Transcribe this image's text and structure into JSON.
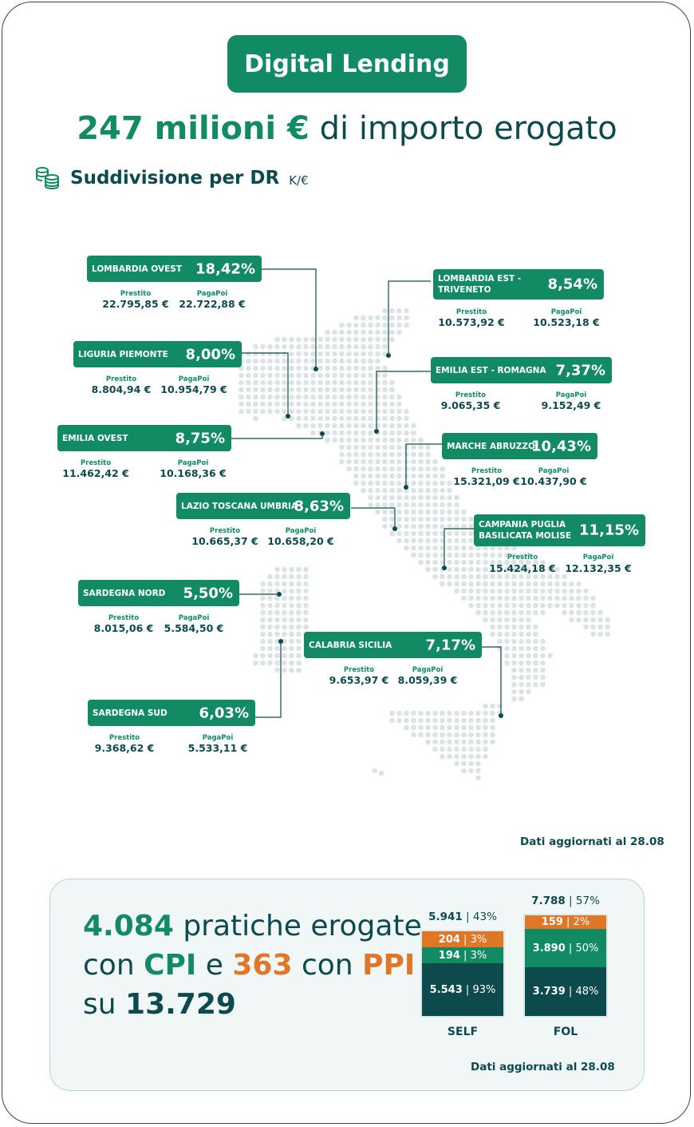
{
  "title": "Digital Lending",
  "headline": {
    "amount": "247 milioni €",
    "rest": "di importo erogato"
  },
  "subtitle": {
    "text": "Suddivisione per DR",
    "unit": "K/€",
    "icon": "coins-icon"
  },
  "labels": {
    "prestito": "Prestito",
    "pagapoi": "PagaPoi"
  },
  "regions": [
    {
      "name": "LOMBARDIA OVEST",
      "pct": "18,42%",
      "prestito": "22.795,85 €",
      "pagapoi": "22.722,88 €"
    },
    {
      "name": "LOMBARDIA EST - TRIVENETO",
      "pct": "8,54%",
      "prestito": "10.573,92 €",
      "pagapoi": "10.523,18 €"
    },
    {
      "name": "LIGURIA PIEMONTE",
      "pct": "8,00%",
      "prestito": "8.804,94 €",
      "pagapoi": "10.954,79 €"
    },
    {
      "name": "EMILIA EST - ROMAGNA",
      "pct": "7,37%",
      "prestito": "9.065,35 €",
      "pagapoi": "9.152,49 €"
    },
    {
      "name": "EMILIA OVEST",
      "pct": "8,75%",
      "prestito": "11.462,42 €",
      "pagapoi": "10.168,36 €"
    },
    {
      "name": "MARCHE ABRUZZO",
      "pct": "10,43%",
      "prestito": "15.321,09 €",
      "pagapoi": "10.437,90 €"
    },
    {
      "name": "LAZIO TOSCANA UMBRIA",
      "pct": "8,63%",
      "prestito": "10.665,37 €",
      "pagapoi": "10.658,20 €"
    },
    {
      "name": "CAMPANIA PUGLIA BASILICATA MOLISE",
      "pct": "11,15%",
      "prestito": "15.424,18 €",
      "pagapoi": "12.132,35 €"
    },
    {
      "name": "SARDEGNA NORD",
      "pct": "5,50%",
      "prestito": "8.015,06 €",
      "pagapoi": "5.584,50 €"
    },
    {
      "name": "CALABRIA SICILIA",
      "pct": "7,17%",
      "prestito": "9.653,97 €",
      "pagapoi": "8.059,39 €"
    },
    {
      "name": "SARDEGNA SUD",
      "pct": "6,03%",
      "prestito": "9.368,62 €",
      "pagapoi": "5.533,11 €"
    }
  ],
  "updated": "Dati aggiornati al 28.08",
  "summary": {
    "n1": "4.084",
    "t1": "pratiche erogate",
    "t2": "con",
    "cpi": "CPI",
    "t3": "e",
    "n2": "363",
    "t4": "con",
    "ppi": "PPI",
    "t5": "su",
    "total": "13.729"
  },
  "bars": [
    {
      "category": "SELF",
      "top": {
        "value": "5.941",
        "pct": "43%"
      },
      "segments": [
        {
          "value": "204",
          "pct": "3%"
        },
        {
          "value": "194",
          "pct": "3%"
        },
        {
          "value": "5.543",
          "pct": "93%"
        }
      ]
    },
    {
      "category": "FOL",
      "top": {
        "value": "7.788",
        "pct": "57%"
      },
      "segments": [
        {
          "value": "159",
          "pct": "2%"
        },
        {
          "value": "3.890",
          "pct": "50%"
        },
        {
          "value": "3.739",
          "pct": "48%"
        }
      ]
    }
  ],
  "colors": {
    "green": "#128a63",
    "dark": "#0d4a4e",
    "orange": "#e07628"
  }
}
